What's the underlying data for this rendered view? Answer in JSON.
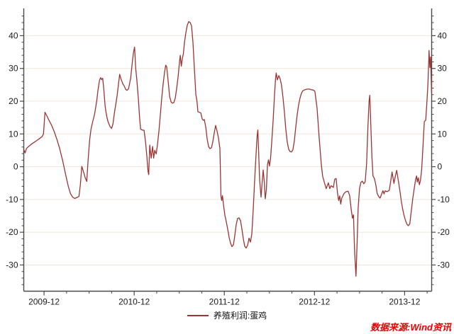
{
  "watermark": {
    "text": "数据来源:Wind资讯",
    "color": "#e60000"
  },
  "legend": {
    "position": "bottom-center"
  },
  "colors": {
    "line": "#9b3534",
    "grid": "#ede8da",
    "axis": "#4a4a4a",
    "text": "#1a1a1a",
    "background": "#ffffff"
  },
  "chart_data": {
    "type": "line",
    "title": "",
    "xlabel": "",
    "ylabel": "",
    "grid": "horizontal",
    "legend_position": "bottom-center",
    "x_unit": "decimal_year",
    "x_range": [
      2009.735,
      2014.26
    ],
    "y_range": [
      -38,
      48.3
    ],
    "y_ticks": [
      -30,
      -20,
      -10,
      0,
      10,
      20,
      30,
      40
    ],
    "y_minor_step": 2,
    "x_minor_step": 0.25,
    "x_major_ticks": [
      {
        "x": 2009.96,
        "label": "2009-12"
      },
      {
        "x": 2010.96,
        "label": "2010-12"
      },
      {
        "x": 2011.96,
        "label": "2011-12"
      },
      {
        "x": 2012.96,
        "label": "2012-12"
      },
      {
        "x": 2013.96,
        "label": "2013-12"
      }
    ],
    "series": [
      {
        "name": "养殖利润:蛋鸡",
        "color": "#9b3534",
        "points": [
          [
            2009.735,
            5.3
          ],
          [
            2009.75,
            4.2
          ],
          [
            2009.766,
            5.6
          ],
          [
            2009.79,
            6.2
          ],
          [
            2009.821,
            6.9
          ],
          [
            2009.852,
            7.5
          ],
          [
            2009.884,
            8.1
          ],
          [
            2009.915,
            8.7
          ],
          [
            2009.939,
            9.2
          ],
          [
            2009.954,
            10
          ],
          [
            2009.97,
            16.6
          ],
          [
            2009.986,
            15.8
          ],
          [
            2010.009,
            14.5
          ],
          [
            2010.041,
            12.8
          ],
          [
            2010.072,
            10.8
          ],
          [
            2010.104,
            8.2
          ],
          [
            2010.135,
            5.4
          ],
          [
            2010.167,
            1.8
          ],
          [
            2010.198,
            -2.2
          ],
          [
            2010.229,
            -6
          ],
          [
            2010.253,
            -8.2
          ],
          [
            2010.277,
            -9.3
          ],
          [
            2010.3,
            -9.7
          ],
          [
            2010.324,
            -9.4
          ],
          [
            2010.347,
            -9.1
          ],
          [
            2010.363,
            -5.5
          ],
          [
            2010.379,
            0.1
          ],
          [
            2010.402,
            -2
          ],
          [
            2010.418,
            -3.5
          ],
          [
            2010.434,
            -4.5
          ],
          [
            2010.449,
            2
          ],
          [
            2010.465,
            8
          ],
          [
            2010.481,
            11.5
          ],
          [
            2010.497,
            13.4
          ],
          [
            2010.52,
            16
          ],
          [
            2010.544,
            20
          ],
          [
            2010.559,
            23.5
          ],
          [
            2010.575,
            26.3
          ],
          [
            2010.587,
            27.2
          ],
          [
            2010.599,
            26.6
          ],
          [
            2010.61,
            27
          ],
          [
            2010.622,
            24
          ],
          [
            2010.638,
            18.5
          ],
          [
            2010.654,
            15.5
          ],
          [
            2010.669,
            13.8
          ],
          [
            2010.693,
            12.2
          ],
          [
            2010.709,
            11.7
          ],
          [
            2010.724,
            13
          ],
          [
            2010.74,
            16.3
          ],
          [
            2010.756,
            19
          ],
          [
            2010.771,
            21.7
          ],
          [
            2010.787,
            25.5
          ],
          [
            2010.799,
            28.2
          ],
          [
            2010.811,
            27
          ],
          [
            2010.822,
            26.2
          ],
          [
            2010.834,
            25.3
          ],
          [
            2010.85,
            24.6
          ],
          [
            2010.866,
            23.6
          ],
          [
            2010.881,
            23.3
          ],
          [
            2010.897,
            23.8
          ],
          [
            2010.921,
            27
          ],
          [
            2010.936,
            31
          ],
          [
            2010.952,
            34.8
          ],
          [
            2010.964,
            36.5
          ],
          [
            2010.976,
            30.3
          ],
          [
            2010.991,
            26
          ],
          [
            2011.007,
            20.6
          ],
          [
            2011.019,
            15.2
          ],
          [
            2011.031,
            11.5
          ],
          [
            2011.047,
            11.2
          ],
          [
            2011.07,
            11.1
          ],
          [
            2011.086,
            7.5
          ],
          [
            2011.101,
            3
          ],
          [
            2011.113,
            -1.3
          ],
          [
            2011.121,
            -2.4
          ],
          [
            2011.133,
            6.6
          ],
          [
            2011.148,
            2.6
          ],
          [
            2011.164,
            6.2
          ],
          [
            2011.176,
            2.6
          ],
          [
            2011.188,
            5
          ],
          [
            2011.204,
            3.9
          ],
          [
            2011.219,
            7
          ],
          [
            2011.235,
            11
          ],
          [
            2011.251,
            16
          ],
          [
            2011.266,
            21
          ],
          [
            2011.282,
            25.5
          ],
          [
            2011.298,
            29
          ],
          [
            2011.31,
            31
          ],
          [
            2011.321,
            30.5
          ],
          [
            2011.337,
            26
          ],
          [
            2011.353,
            21.5
          ],
          [
            2011.369,
            19.8
          ],
          [
            2011.384,
            19.4
          ],
          [
            2011.4,
            19.6
          ],
          [
            2011.416,
            21
          ],
          [
            2011.432,
            24
          ],
          [
            2011.447,
            27.3
          ],
          [
            2011.459,
            31
          ],
          [
            2011.471,
            34
          ],
          [
            2011.483,
            30.7
          ],
          [
            2011.494,
            33
          ],
          [
            2011.506,
            34.5
          ],
          [
            2011.518,
            38
          ],
          [
            2011.534,
            41
          ],
          [
            2011.549,
            43.2
          ],
          [
            2011.565,
            44.3
          ],
          [
            2011.581,
            44
          ],
          [
            2011.596,
            43
          ],
          [
            2011.612,
            38
          ],
          [
            2011.628,
            30
          ],
          [
            2011.644,
            22
          ],
          [
            2011.655,
            20.3
          ],
          [
            2011.667,
            16.8
          ],
          [
            2011.683,
            16.6
          ],
          [
            2011.699,
            16.4
          ],
          [
            2011.714,
            14.6
          ],
          [
            2011.726,
            14.2
          ],
          [
            2011.738,
            14.4
          ],
          [
            2011.754,
            12
          ],
          [
            2011.769,
            8.5
          ],
          [
            2011.785,
            6.2
          ],
          [
            2011.801,
            5.5
          ],
          [
            2011.817,
            5.8
          ],
          [
            2011.832,
            7.6
          ],
          [
            2011.848,
            10.3
          ],
          [
            2011.864,
            12.6
          ],
          [
            2011.88,
            10.8
          ],
          [
            2011.895,
            8.7
          ],
          [
            2011.911,
            5.5
          ],
          [
            2011.923,
            -9
          ],
          [
            2011.931,
            -10.3
          ],
          [
            2011.939,
            -8.8
          ],
          [
            2011.95,
            -11.5
          ],
          [
            2011.966,
            -14.8
          ],
          [
            2011.982,
            -16.8
          ],
          [
            2011.998,
            -19.2
          ],
          [
            2012.013,
            -21.6
          ],
          [
            2012.029,
            -23.3
          ],
          [
            2012.045,
            -24.4
          ],
          [
            2012.061,
            -23.8
          ],
          [
            2012.076,
            -21
          ],
          [
            2012.092,
            -17.6
          ],
          [
            2012.108,
            -15.8
          ],
          [
            2012.123,
            -15.6
          ],
          [
            2012.139,
            -16.4
          ],
          [
            2012.155,
            -19
          ],
          [
            2012.171,
            -22
          ],
          [
            2012.186,
            -24.3
          ],
          [
            2012.202,
            -24.8
          ],
          [
            2012.218,
            -24
          ],
          [
            2012.234,
            -21.8
          ],
          [
            2012.249,
            -23
          ],
          [
            2012.265,
            -20.5
          ],
          [
            2012.281,
            -13
          ],
          [
            2012.296,
            -4.5
          ],
          [
            2012.312,
            4
          ],
          [
            2012.324,
            9.5
          ],
          [
            2012.332,
            11.2
          ],
          [
            2012.344,
            2
          ],
          [
            2012.352,
            -4
          ],
          [
            2012.367,
            -9.3
          ],
          [
            2012.379,
            -5
          ],
          [
            2012.391,
            -1
          ],
          [
            2012.403,
            -4.5
          ],
          [
            2012.414,
            -9.8
          ],
          [
            2012.426,
            -7
          ],
          [
            2012.438,
            0.5
          ],
          [
            2012.45,
            2.1
          ],
          [
            2012.461,
            0.2
          ],
          [
            2012.473,
            2.6
          ],
          [
            2012.485,
            7
          ],
          [
            2012.501,
            14
          ],
          [
            2012.516,
            21.5
          ],
          [
            2012.528,
            26.8
          ],
          [
            2012.536,
            28.6
          ],
          [
            2012.548,
            26.5
          ],
          [
            2012.564,
            27.8
          ],
          [
            2012.579,
            26.8
          ],
          [
            2012.595,
            24.8
          ],
          [
            2012.611,
            21
          ],
          [
            2012.627,
            16.5
          ],
          [
            2012.642,
            11.5
          ],
          [
            2012.658,
            7.6
          ],
          [
            2012.674,
            5.3
          ],
          [
            2012.69,
            4.6
          ],
          [
            2012.705,
            4.5
          ],
          [
            2012.721,
            5.2
          ],
          [
            2012.737,
            8
          ],
          [
            2012.752,
            12
          ],
          [
            2012.768,
            15.8
          ],
          [
            2012.784,
            18.8
          ],
          [
            2012.8,
            21
          ],
          [
            2012.815,
            22.4
          ],
          [
            2012.831,
            23.2
          ],
          [
            2012.855,
            23.5
          ],
          [
            2012.878,
            23.7
          ],
          [
            2012.902,
            23.7
          ],
          [
            2012.925,
            23.5
          ],
          [
            2012.949,
            23.4
          ],
          [
            2012.965,
            23
          ],
          [
            2012.988,
            18
          ],
          [
            2013.012,
            9
          ],
          [
            2013.035,
            1
          ],
          [
            2013.051,
            -3
          ],
          [
            2013.075,
            -5.3
          ],
          [
            2013.09,
            -6.7
          ],
          [
            2013.114,
            -4.9
          ],
          [
            2013.13,
            -6.7
          ],
          [
            2013.145,
            -5.8
          ],
          [
            2013.169,
            -6.3
          ],
          [
            2013.185,
            -3.8
          ],
          [
            2013.2,
            -3.6
          ],
          [
            2013.216,
            -8
          ],
          [
            2013.228,
            -10.3
          ],
          [
            2013.24,
            -8.9
          ],
          [
            2013.251,
            -11.4
          ],
          [
            2013.263,
            -9.6
          ],
          [
            2013.287,
            -8.2
          ],
          [
            2013.31,
            -7.6
          ],
          [
            2013.334,
            -7.5
          ],
          [
            2013.35,
            -8.8
          ],
          [
            2013.365,
            -12.5
          ],
          [
            2013.381,
            -15.7
          ],
          [
            2013.393,
            -14.7
          ],
          [
            2013.405,
            -26
          ],
          [
            2013.42,
            -33.4
          ],
          [
            2013.432,
            -24
          ],
          [
            2013.444,
            -13
          ],
          [
            2013.46,
            -6.7
          ],
          [
            2013.475,
            -4.8
          ],
          [
            2013.491,
            -4.4
          ],
          [
            2013.507,
            -5.2
          ],
          [
            2013.523,
            -4.6
          ],
          [
            2013.538,
            1
          ],
          [
            2013.554,
            13
          ],
          [
            2013.566,
            20
          ],
          [
            2013.574,
            21.8
          ],
          [
            2013.585,
            13
          ],
          [
            2013.597,
            3
          ],
          [
            2013.609,
            -2.8
          ],
          [
            2013.625,
            -3.6
          ],
          [
            2013.641,
            -5.5
          ],
          [
            2013.656,
            -8.2
          ],
          [
            2013.672,
            -9.1
          ],
          [
            2013.688,
            -9.6
          ],
          [
            2013.703,
            -8.5
          ],
          [
            2013.719,
            -7.3
          ],
          [
            2013.731,
            -8.3
          ],
          [
            2013.743,
            -7.4
          ],
          [
            2013.766,
            -7.6
          ],
          [
            2013.79,
            -7.2
          ],
          [
            2013.805,
            -4.5
          ],
          [
            2013.821,
            -1.6
          ],
          [
            2013.841,
            -5.1
          ],
          [
            2013.856,
            -3
          ],
          [
            2013.872,
            -1.1
          ],
          [
            2013.892,
            -4.5
          ],
          [
            2013.908,
            -7.5
          ],
          [
            2013.923,
            -10.5
          ],
          [
            2013.939,
            -13
          ],
          [
            2013.955,
            -15
          ],
          [
            2013.971,
            -16.5
          ],
          [
            2013.986,
            -17.6
          ],
          [
            2014.002,
            -18
          ],
          [
            2014.018,
            -17.4
          ],
          [
            2014.034,
            -13.5
          ],
          [
            2014.049,
            -10
          ],
          [
            2014.065,
            -7
          ],
          [
            2014.081,
            -4
          ],
          [
            2014.093,
            -2.8
          ],
          [
            2014.1,
            -4.7
          ],
          [
            2014.112,
            -3.4
          ],
          [
            2014.124,
            -5.5
          ],
          [
            2014.136,
            -4.2
          ],
          [
            2014.148,
            -1.2
          ],
          [
            2014.159,
            4
          ],
          [
            2014.167,
            8
          ],
          [
            2014.179,
            13.8
          ],
          [
            2014.194,
            14.2
          ],
          [
            2014.206,
            19
          ],
          [
            2014.218,
            25
          ],
          [
            2014.226,
            31
          ],
          [
            2014.231,
            35.5
          ],
          [
            2014.24,
            30.3
          ],
          [
            2014.248,
            33.5
          ],
          [
            2014.253,
            29
          ],
          [
            2014.259,
            22.5
          ]
        ]
      }
    ]
  }
}
